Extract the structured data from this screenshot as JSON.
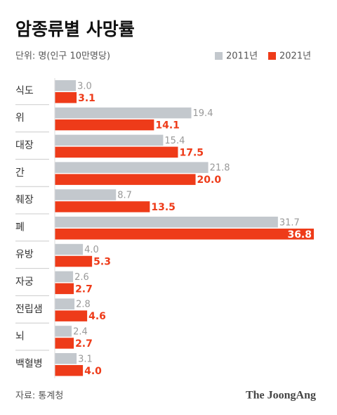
{
  "chart_data": {
    "type": "bar",
    "orientation": "horizontal",
    "title": "암종류별 사망률",
    "subtitle": "단위: 명(인구 10만명당)",
    "source": "자료: 통계청",
    "brand": "The JoongAng",
    "categories": [
      "식도",
      "위",
      "대장",
      "간",
      "췌장",
      "폐",
      "유방",
      "자궁",
      "전립샘",
      "뇌",
      "백혈병"
    ],
    "series": [
      {
        "name": "2011년",
        "color": "#c3c8cd",
        "values": [
          3.0,
          19.4,
          15.4,
          21.8,
          8.7,
          31.7,
          4.0,
          2.6,
          2.8,
          2.4,
          3.1
        ],
        "value_labels": [
          "3.0",
          "19.4",
          "15.4",
          "21.8",
          "8.7",
          "31.7",
          "4.0",
          "2.6",
          "2.8",
          "2.4",
          "3.1"
        ]
      },
      {
        "name": "2021년",
        "color": "#ee3b19",
        "values": [
          3.1,
          14.1,
          17.5,
          20.0,
          13.5,
          36.8,
          5.3,
          2.7,
          4.6,
          2.7,
          4.0
        ],
        "value_labels": [
          "3.1",
          "14.1",
          "17.5",
          "20.0",
          "13.5",
          "36.8",
          "5.3",
          "2.7",
          "4.6",
          "2.7",
          "4.0"
        ]
      }
    ],
    "legend": "top-right"
  }
}
